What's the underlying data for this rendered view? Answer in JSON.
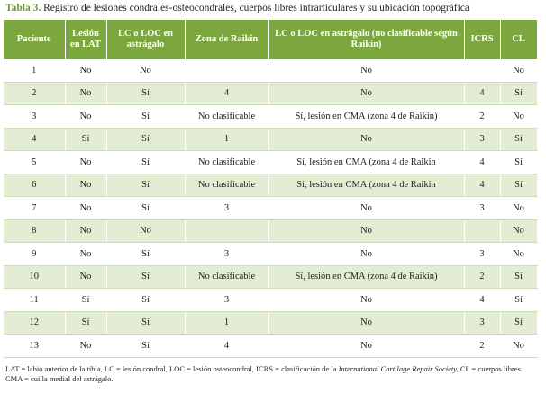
{
  "title": {
    "label": "Tabla 3.",
    "text": "Registro de lesiones condrales-osteocondrales, cuerpos libres intrarticulares y su ubicación topográfica"
  },
  "table": {
    "headers": [
      "Paciente",
      "Lesión en LAT",
      "LC o LOC en astrágalo",
      "Zona de Raikin",
      "LC o LOC en astrágalo (no clasificable según Raikin)",
      "ICRS",
      "CL"
    ],
    "rows": [
      [
        "1",
        "No",
        "No",
        null,
        "No",
        null,
        "No"
      ],
      [
        "2",
        "No",
        "Sí",
        "4",
        "No",
        "4",
        "Sí"
      ],
      [
        "3",
        "No",
        "Sí",
        "No clasificable",
        "Sí, lesión en CMA (zona 4 de Raikin)",
        "2",
        "No"
      ],
      [
        "4",
        "Sí",
        "Sí",
        "1",
        "No",
        "3",
        "Sí"
      ],
      [
        "5",
        "No",
        "Sí",
        "No clasificable",
        "Sí, lesión en CMA (zona 4 de Raikin",
        "4",
        "Sí"
      ],
      [
        "6",
        "No",
        "Sí",
        "No clasificable",
        "Sí, lesión en CMA (zona 4 de Raikin",
        "4",
        "Sí"
      ],
      [
        "7",
        "No",
        "Sí",
        "3",
        "No",
        "3",
        "No"
      ],
      [
        "8",
        "No",
        "No",
        null,
        "No",
        null,
        "No"
      ],
      [
        "9",
        "No",
        "Sí",
        "3",
        "No",
        "3",
        "No"
      ],
      [
        "10",
        "No",
        "Sí",
        "No clasificable",
        "Sí, lesión en CMA (zona 4 de Raikin)",
        "2",
        "Sí"
      ],
      [
        "11",
        "Sí",
        "Sí",
        "3",
        "No",
        "4",
        "Sí"
      ],
      [
        "12",
        "Sí",
        "Sí",
        "1",
        "No",
        "3",
        "Sí"
      ],
      [
        "13",
        "No",
        "Sí",
        "4",
        "No",
        "2",
        "No"
      ]
    ]
  },
  "footnote": {
    "before": "LAT = labio anterior de la tibia, LC = lesión condral, LOC = lesión osteocondral, ICRS = clasificación de la",
    "italic": "International Cartilage Repair Society,",
    "after": "CL = cuerpos libres. CMA = cuilla medial del astrágalo."
  }
}
